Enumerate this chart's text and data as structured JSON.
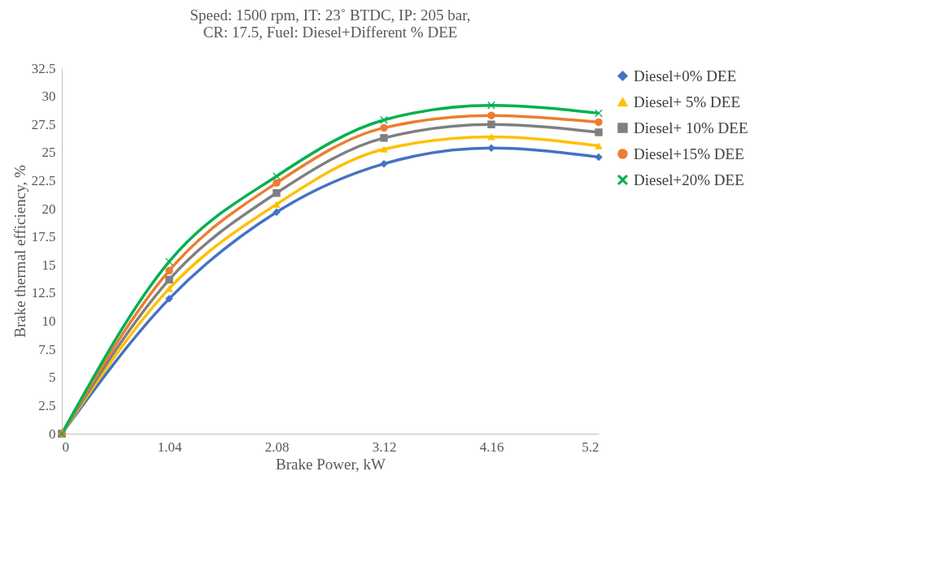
{
  "chart_data": {
    "type": "line",
    "title": "Speed: 1500 rpm, IT: 23˚ BTDC, IP: 205 bar,\nCR: 17.5, Fuel: Diesel+Different % DEE",
    "xlabel": "Brake Power, kW",
    "ylabel": "Brake thermal efficiency, %",
    "x": [
      0,
      1.04,
      2.08,
      3.12,
      4.16,
      5.2
    ],
    "xlim": [
      0,
      5.2
    ],
    "xticks": [
      0,
      1.04,
      2.08,
      3.12,
      4.16,
      5.2
    ],
    "ylim": [
      0,
      32.5
    ],
    "yticks": [
      0,
      2.5,
      5,
      7.5,
      10,
      12.5,
      15,
      17.5,
      20,
      22.5,
      25,
      27.5,
      30,
      32.5
    ],
    "grid": false,
    "legend": "right",
    "series": [
      {
        "name": "Diesel+0% DEE",
        "color": "#4472c4",
        "marker": "diamond",
        "values": [
          0,
          12,
          19.7,
          24,
          25.4,
          24.6
        ]
      },
      {
        "name": "Diesel+ 5% DEE",
        "color": "#ffc000",
        "marker": "triangle",
        "values": [
          0,
          12.9,
          20.4,
          25.3,
          26.4,
          25.6
        ]
      },
      {
        "name": "Diesel+ 10% DEE",
        "color": "#7f7f7f",
        "marker": "square",
        "values": [
          0,
          13.7,
          21.4,
          26.3,
          27.5,
          26.8
        ]
      },
      {
        "name": "Diesel+15% DEE",
        "color": "#ed7d31",
        "marker": "circle",
        "values": [
          0,
          14.5,
          22.3,
          27.2,
          28.3,
          27.7
        ]
      },
      {
        "name": "Diesel+20% DEE",
        "color": "#00b050",
        "marker": "cross",
        "values": [
          0,
          15.3,
          22.9,
          27.9,
          29.2,
          28.5
        ]
      }
    ]
  }
}
